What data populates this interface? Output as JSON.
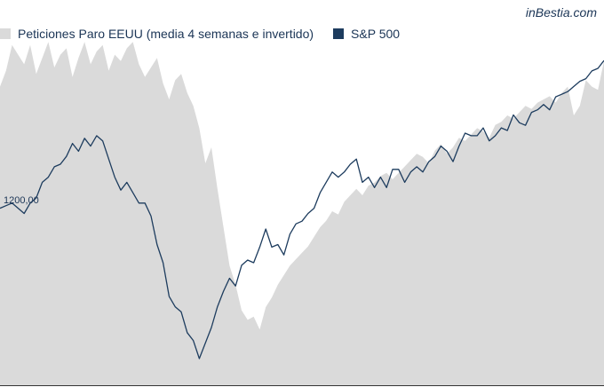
{
  "brand": "inBestia.com",
  "chart_data": {
    "type": "area",
    "legend_position": "top-left",
    "grid": false,
    "y_tick_labels": [
      "1200,00"
    ],
    "x_index_range": [
      0,
      100
    ],
    "series": [
      {
        "name": "Peticiones Paro EEUU (media 4 semanas e invertido)",
        "kind": "area",
        "color": "#dadada",
        "values": [
          84,
          89,
          97,
          94,
          91,
          97,
          88,
          93,
          98,
          90,
          94,
          96,
          87,
          93,
          98,
          91,
          95,
          97,
          89,
          94,
          92,
          96,
          98,
          91,
          87,
          90,
          93,
          85,
          80,
          86,
          88,
          82,
          78,
          71,
          60,
          65,
          52,
          40,
          28,
          22,
          14,
          11,
          12,
          8,
          15,
          18,
          22,
          25,
          28,
          30,
          32,
          34,
          37,
          40,
          42,
          45,
          44,
          48,
          50,
          52,
          50,
          53,
          54,
          56,
          57,
          55,
          57,
          59,
          61,
          63,
          62,
          60,
          64,
          66,
          63,
          65,
          68,
          67,
          69,
          71,
          70,
          68,
          72,
          73,
          75,
          74,
          76,
          78,
          77,
          79,
          80,
          81,
          79,
          82,
          84,
          75,
          78,
          86,
          84,
          83,
          92
        ]
      },
      {
        "name": "S&P 500",
        "kind": "line",
        "color": "#1d3c5e",
        "values": [
          58,
          59,
          60,
          58,
          56,
          60,
          62,
          68,
          70,
          74,
          75,
          78,
          83,
          80,
          85,
          82,
          86,
          84,
          77,
          70,
          65,
          68,
          64,
          60,
          60,
          55,
          44,
          37,
          24,
          20,
          18,
          10,
          7,
          0,
          6,
          12,
          20,
          26,
          31,
          28,
          36,
          38,
          37,
          43,
          50,
          43,
          44,
          40,
          48,
          52,
          53,
          56,
          58,
          64,
          68,
          72,
          70,
          72,
          75,
          77,
          68,
          70,
          66,
          70,
          66,
          73,
          73,
          68,
          72,
          74,
          72,
          76,
          78,
          82,
          80,
          76,
          82,
          87,
          86,
          86,
          89,
          84,
          86,
          89,
          88,
          94,
          91,
          90,
          95,
          96,
          98,
          96,
          101,
          102,
          103,
          105,
          107,
          108,
          111,
          112,
          115
        ]
      }
    ]
  }
}
